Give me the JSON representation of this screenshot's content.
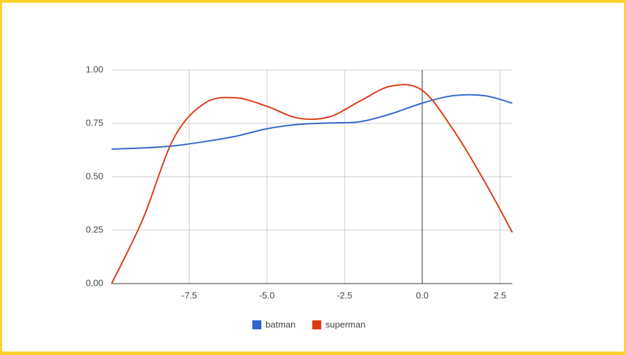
{
  "chart_data": {
    "type": "line",
    "x": [
      -10,
      -9,
      -8,
      -7,
      -6,
      -5,
      -4,
      -3,
      -2,
      -1,
      0,
      1,
      2,
      2.9
    ],
    "series": [
      {
        "name": "batman",
        "color": "#3366cc",
        "values": [
          0.63,
          0.635,
          0.645,
          0.665,
          0.69,
          0.725,
          0.745,
          0.752,
          0.758,
          0.795,
          0.845,
          0.88,
          0.88,
          0.845
        ]
      },
      {
        "name": "superman",
        "color": "#dc3912",
        "values": [
          0.0,
          0.3,
          0.68,
          0.845,
          0.87,
          0.83,
          0.775,
          0.78,
          0.855,
          0.925,
          0.905,
          0.72,
          0.48,
          0.24
        ]
      }
    ],
    "xlim": [
      -10,
      2.9
    ],
    "xticks": [
      -7.5,
      {
        "value": -5,
        "label": "-5.0"
      },
      -2.5,
      {
        "value": 0,
        "label": "0.0"
      },
      2.5
    ],
    "ylim": [
      0,
      1
    ],
    "yticks": [
      {
        "value": 0,
        "label": "0.00"
      },
      {
        "value": 0.25,
        "label": "0.25"
      },
      {
        "value": 0.5,
        "label": "0.50"
      },
      {
        "value": 0.75,
        "label": "0.75"
      },
      {
        "value": 1,
        "label": "1.00"
      }
    ],
    "grid": true,
    "legend": "bottom"
  }
}
